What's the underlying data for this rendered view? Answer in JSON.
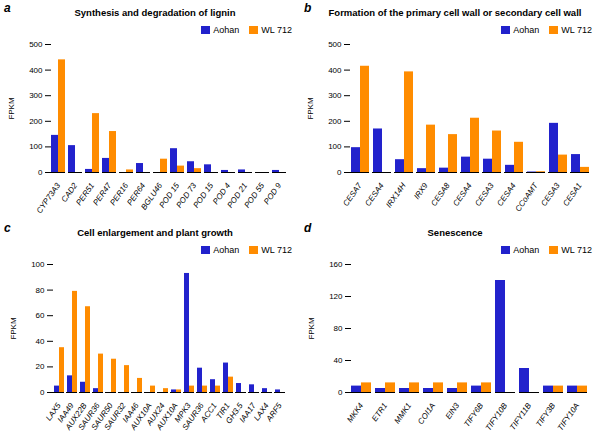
{
  "chart_data": [
    {
      "type": "bar",
      "title": "Synthesis and degradation of lignin",
      "annotations": [
        "a"
      ],
      "categories": [
        "CYP73A3",
        "CAD2",
        "PER51",
        "PER47",
        "PER16",
        "PER64",
        "BGLU46",
        "POD 15",
        "POD 73",
        "POD 15",
        "POD 4",
        "POD 21",
        "POD 55",
        "POD 9"
      ],
      "series": [
        {
          "name": "Aohan",
          "color": "#2222CC",
          "values": [
            145,
            105,
            12,
            55,
            0,
            35,
            0,
            93,
            42,
            30,
            8,
            10,
            0,
            8
          ]
        },
        {
          "name": "WL 712",
          "color": "#FF8C00",
          "values": [
            440,
            0,
            230,
            160,
            10,
            0,
            52,
            25,
            15,
            0,
            0,
            0,
            0,
            0
          ]
        }
      ],
      "ylabel": "FPKM",
      "ylim": [
        0,
        500
      ],
      "yticks": [
        0,
        100,
        200,
        300,
        400,
        500
      ],
      "grid": false,
      "legend": "upper right"
    },
    {
      "type": "bar",
      "title": "Formation of the primary cell wall or secondary cell wall",
      "annotations": [
        "b"
      ],
      "categories": [
        "CESA7",
        "CESA4",
        "IRX14H",
        "IRX9",
        "CESA8",
        "CESA4",
        "CESA3",
        "CESA4",
        "CCoAMT",
        "CESA3",
        "CESA1"
      ],
      "series": [
        {
          "name": "Aohan",
          "color": "#2222CC",
          "values": [
            97,
            170,
            50,
            15,
            17,
            60,
            52,
            28,
            2,
            192,
            70
          ]
        },
        {
          "name": "WL 712",
          "color": "#FF8C00",
          "values": [
            415,
            0,
            393,
            185,
            148,
            212,
            162,
            118,
            3,
            68,
            20
          ]
        }
      ],
      "ylabel": "FPKM",
      "ylim": [
        0,
        500
      ],
      "yticks": [
        0,
        100,
        200,
        300,
        400,
        500
      ],
      "grid": false,
      "legend": "upper right"
    },
    {
      "type": "bar",
      "title": "Cell enlargement and plant growth",
      "annotations": [
        "c"
      ],
      "categories": [
        "LAX5",
        "IAA49",
        "AUX22B",
        "SAUR36",
        "SAUR50",
        "SAUR32",
        "IAA46",
        "AUX10A",
        "AUX24",
        "AUX10A",
        "MPK3",
        "SAUR36",
        "ACC1",
        "TIR1",
        "GH3.5",
        "IAA17",
        "LAX4",
        "ARF5"
      ],
      "series": [
        {
          "name": "Aohan",
          "color": "#2222CC",
          "values": [
            5,
            13,
            8,
            3,
            0,
            0,
            0,
            0,
            0,
            2,
            93,
            19,
            10,
            23,
            7,
            6,
            3,
            2
          ]
        },
        {
          "name": "WL 712",
          "color": "#FF8C00",
          "values": [
            35,
            79,
            67,
            30,
            26,
            21,
            11,
            5,
            3,
            2,
            5,
            5,
            5,
            12,
            0,
            0,
            0,
            0
          ]
        }
      ],
      "ylabel": "FPKM",
      "ylim": [
        0,
        100
      ],
      "yticks": [
        0,
        20,
        40,
        60,
        80,
        100
      ],
      "grid": false,
      "legend": "upper right"
    },
    {
      "type": "bar",
      "title": "Senescence",
      "annotations": [
        "d"
      ],
      "categories": [
        "MKK4",
        "ETR1",
        "MMK1",
        "COI1A",
        "EIN3",
        "TIFY6B",
        "TIFY10B",
        "TIFY11B",
        "TIFY3B",
        "TIFY10A"
      ],
      "series": [
        {
          "name": "Aohan",
          "color": "#2222CC",
          "values": [
            8,
            5,
            5,
            5,
            5,
            8,
            140,
            30,
            8,
            8
          ]
        },
        {
          "name": "WL 712",
          "color": "#FF8C00",
          "values": [
            12,
            12,
            12,
            12,
            12,
            12,
            0,
            0,
            8,
            8
          ]
        }
      ],
      "ylabel": "FPKM",
      "ylim": [
        0,
        160
      ],
      "yticks": [
        0,
        40,
        80,
        120,
        160
      ],
      "grid": false,
      "legend": "upper right"
    }
  ]
}
